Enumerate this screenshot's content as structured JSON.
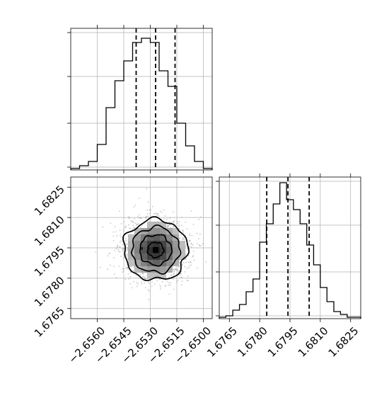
{
  "chart_data": [
    {
      "type": "histogram",
      "panel": "top-left marginal",
      "x_ticks": [
        -2.656,
        -2.6545,
        -2.653,
        -2.6515,
        -2.65
      ],
      "xlim": [
        -2.6575,
        -2.6495
      ],
      "grid": true,
      "bins": [
        -2.6575,
        -2.657,
        -2.6565,
        -2.656,
        -2.6555,
        -2.655,
        -2.6545,
        -2.654,
        -2.6535,
        -2.653,
        -2.6525,
        -2.652,
        -2.6515,
        -2.651,
        -2.6505,
        -2.65,
        -2.6495
      ],
      "relative_counts": [
        0.01,
        0.03,
        0.06,
        0.18,
        0.44,
        0.63,
        0.77,
        0.9,
        0.93,
        0.9,
        0.7,
        0.59,
        0.33,
        0.17,
        0.06,
        0.01
      ],
      "quantile_lines": [
        -2.6538,
        -2.6527,
        -2.6516
      ],
      "y_tick_labels_shown": false
    },
    {
      "type": "histogram",
      "panel": "bottom-right marginal",
      "x_ticks": [
        1.6765,
        1.678,
        1.6795,
        1.681,
        1.6825
      ],
      "xlim": [
        1.676,
        1.683
      ],
      "grid": true,
      "bins": [
        1.676,
        1.67633,
        1.67667,
        1.677,
        1.67733,
        1.67767,
        1.678,
        1.67833,
        1.67867,
        1.679,
        1.67933,
        1.67967,
        1.68,
        1.68033,
        1.68067,
        1.681,
        1.68133,
        1.68167,
        1.682,
        1.68233,
        1.68267,
        1.683
      ],
      "relative_counts": [
        0.01,
        0.02,
        0.06,
        0.1,
        0.19,
        0.28,
        0.54,
        0.67,
        0.81,
        0.96,
        0.84,
        0.77,
        0.67,
        0.52,
        0.38,
        0.22,
        0.12,
        0.05,
        0.03,
        0.01,
        0.01
      ],
      "quantile_lines": [
        1.67835,
        1.6794,
        1.68045
      ],
      "y_tick_labels_shown": false
    },
    {
      "type": "2d-histogram-contour",
      "panel": "bottom-left joint",
      "x_ticks": [
        -2.656,
        -2.6545,
        -2.653,
        -2.6515,
        -2.65
      ],
      "y_ticks": [
        1.6765,
        1.678,
        1.6795,
        1.681,
        1.6825
      ],
      "xlim": [
        -2.6575,
        -2.6495
      ],
      "ylim": [
        1.676,
        1.683
      ],
      "grid": true,
      "center": [
        -2.6527,
        1.6794
      ],
      "sigma": [
        0.0009,
        0.00075
      ],
      "contour_levels_sigma": [
        0.5,
        1.0,
        1.5,
        2.0
      ],
      "scatter": "light gray points outside contours"
    }
  ],
  "tick_labels": {
    "x": [
      "−2.6560",
      "−2.6545",
      "−2.6530",
      "−2.6515",
      "−2.6500"
    ],
    "y": [
      "1.6765",
      "1.6780",
      "1.6795",
      "1.6810",
      "1.6825"
    ],
    "x2": [
      "1.6765",
      "1.6780",
      "1.6795",
      "1.6810",
      "1.6825"
    ]
  },
  "colors": {
    "line": "#000000",
    "grid": "#b0b0b0",
    "scatter": "#9a9a9a"
  }
}
